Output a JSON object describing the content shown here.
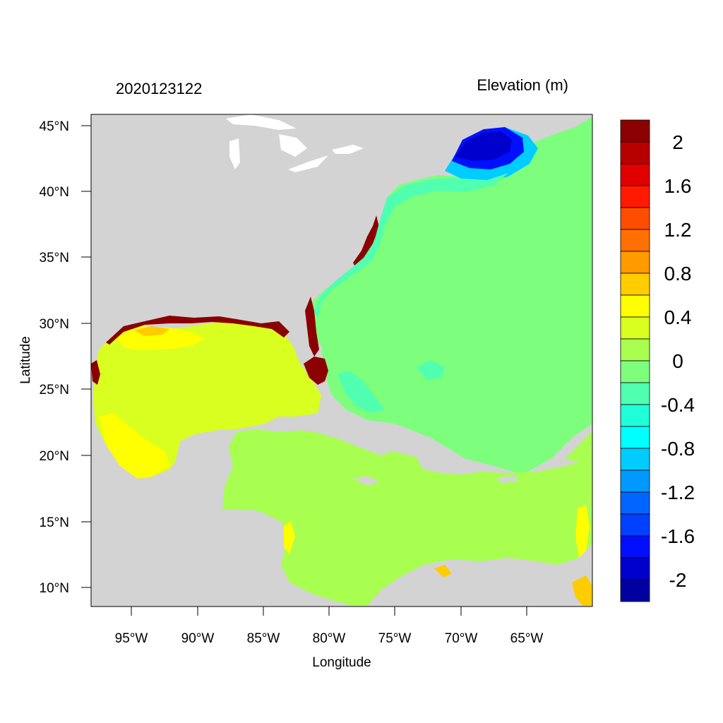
{
  "header": {
    "timestamp": "2020123122",
    "field_title": "Elevation (m)"
  },
  "axes": {
    "x_label": "Longitude",
    "y_label": "Latitude",
    "x_ticks": [
      "95°W",
      "90°W",
      "85°W",
      "80°W",
      "75°W",
      "70°W",
      "65°W"
    ],
    "y_ticks": [
      "45°N",
      "40°N",
      "35°N",
      "30°N",
      "25°N",
      "20°N",
      "15°N",
      "10°N"
    ]
  },
  "colorbar": {
    "labels": [
      "2",
      "1.6",
      "1.2",
      "0.8",
      "0.4",
      "0",
      "-0.4",
      "-0.8",
      "-1.2",
      "-1.6",
      "-2"
    ],
    "colors": [
      "#8b0000",
      "#b80000",
      "#e00000",
      "#ff1a00",
      "#ff4d00",
      "#ff7000",
      "#ff9a00",
      "#ffcc00",
      "#ffff00",
      "#d8ff20",
      "#a8ff50",
      "#7dff7d",
      "#50ffb0",
      "#20ffd8",
      "#00ffff",
      "#00ccff",
      "#0099ff",
      "#0066ff",
      "#0040ff",
      "#0010ff",
      "#0000cc",
      "#0000a0"
    ]
  },
  "colors": {
    "land": "#d3d3d3",
    "atlantic": "#7dff7d",
    "gulf": "#d8ff20",
    "caribbean": "#a8ff50",
    "coastal_high": "#8b0000",
    "gulf_of_maine": "#0010ff"
  }
}
